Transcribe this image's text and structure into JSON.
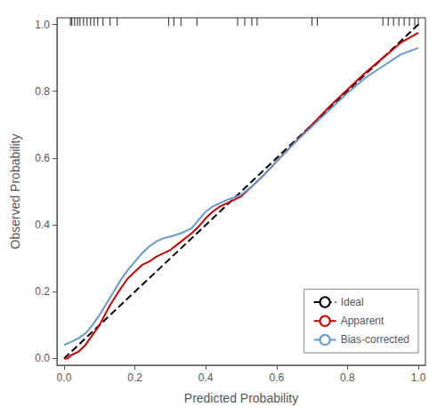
{
  "chart_data": {
    "type": "line",
    "xlabel": "Predicted Probability",
    "ylabel": "Observed Probability",
    "xlim": [
      -0.02,
      1.02
    ],
    "ylim": [
      -0.02,
      1.02
    ],
    "xticks": [
      {
        "value": 0.0,
        "label": "0.0"
      },
      0.2,
      0.4,
      0.6,
      0.8,
      {
        "value": 1.0,
        "label": "1.0"
      }
    ],
    "yticks": [
      {
        "value": 0.0,
        "label": "0.0"
      },
      0.2,
      0.4,
      0.6,
      0.8,
      {
        "value": 1.0,
        "label": "1.0"
      }
    ],
    "grid": false,
    "legend": "lower right",
    "series": [
      {
        "name": "Ideal",
        "color": "#000000",
        "line_style": "dashed",
        "x": [
          0,
          1
        ],
        "values": [
          0,
          1
        ]
      },
      {
        "name": "Apparent",
        "color": "#cc0000",
        "line_style": "solid",
        "x": [
          0.0,
          0.01,
          0.02,
          0.04,
          0.06,
          0.08,
          0.1,
          0.13,
          0.16,
          0.18,
          0.2,
          0.22,
          0.24,
          0.26,
          0.28,
          0.3,
          0.33,
          0.36,
          0.38,
          0.4,
          0.42,
          0.44,
          0.46,
          0.48,
          0.5,
          0.53,
          0.56,
          0.6,
          0.65,
          0.7,
          0.75,
          0.8,
          0.85,
          0.9,
          0.95,
          1.0
        ],
        "values": [
          0.0,
          0.0,
          0.01,
          0.02,
          0.04,
          0.07,
          0.1,
          0.16,
          0.21,
          0.24,
          0.26,
          0.28,
          0.29,
          0.305,
          0.315,
          0.325,
          0.35,
          0.375,
          0.395,
          0.42,
          0.44,
          0.455,
          0.465,
          0.475,
          0.485,
          0.515,
          0.545,
          0.59,
          0.645,
          0.7,
          0.755,
          0.805,
          0.855,
          0.9,
          0.945,
          0.975
        ]
      },
      {
        "name": "Bias-corrected",
        "color": "#6699cc",
        "line_style": "solid",
        "x": [
          0.0,
          0.01,
          0.02,
          0.04,
          0.06,
          0.08,
          0.1,
          0.12,
          0.14,
          0.16,
          0.18,
          0.2,
          0.22,
          0.24,
          0.26,
          0.28,
          0.3,
          0.33,
          0.36,
          0.38,
          0.4,
          0.42,
          0.44,
          0.46,
          0.48,
          0.5,
          0.53,
          0.56,
          0.6,
          0.65,
          0.7,
          0.75,
          0.8,
          0.85,
          0.9,
          0.95,
          1.0
        ],
        "values": [
          0.04,
          0.045,
          0.05,
          0.06,
          0.075,
          0.1,
          0.13,
          0.165,
          0.2,
          0.235,
          0.265,
          0.29,
          0.315,
          0.335,
          0.35,
          0.36,
          0.365,
          0.375,
          0.39,
          0.415,
          0.44,
          0.455,
          0.465,
          0.475,
          0.482,
          0.49,
          0.515,
          0.545,
          0.59,
          0.645,
          0.695,
          0.745,
          0.795,
          0.84,
          0.875,
          0.91,
          0.93
        ]
      }
    ],
    "rug_x": [
      0.018,
      0.022,
      0.03,
      0.038,
      0.045,
      0.055,
      0.065,
      0.075,
      0.085,
      0.095,
      0.11,
      0.13,
      0.15,
      0.295,
      0.31,
      0.33,
      0.375,
      0.49,
      0.51,
      0.53,
      0.545,
      0.7,
      0.715,
      0.9,
      0.915,
      0.93,
      0.945,
      0.96,
      0.975,
      0.99,
      1.0
    ]
  }
}
